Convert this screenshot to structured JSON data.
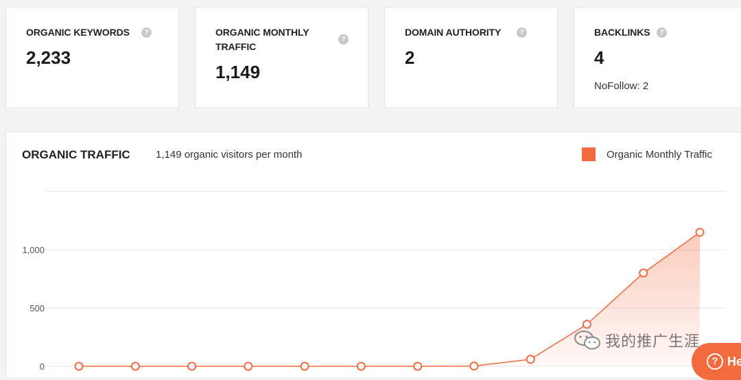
{
  "cards": [
    {
      "title": "ORGANIC KEYWORDS",
      "value": "2,233",
      "help": "?"
    },
    {
      "title": "ORGANIC MONTHLY TRAFFIC",
      "value": "1,149",
      "help": "?"
    },
    {
      "title": "DOMAIN AUTHORITY",
      "value": "2",
      "help": "?"
    },
    {
      "title": "BACKLINKS",
      "value": "4",
      "sub": "NoFollow: 2",
      "help": "?"
    }
  ],
  "traffic_panel": {
    "title": "ORGANIC TRAFFIC",
    "subtitle": "1,149 organic visitors per month",
    "legend_label": "Organic Monthly Traffic",
    "accent_color": "#f26a3d"
  },
  "chart_data": {
    "type": "area",
    "title": "ORGANIC TRAFFIC",
    "series": [
      {
        "name": "Organic Monthly Traffic",
        "values": [
          0,
          0,
          0,
          0,
          0,
          0,
          0,
          2,
          60,
          360,
          800,
          1149
        ]
      }
    ],
    "yticks": [
      "0",
      "500",
      "1,000"
    ],
    "ylim": [
      0,
      1500
    ],
    "grid": true,
    "legend": "top-right"
  },
  "help_button": {
    "label": "He",
    "icon": "help-circle-icon"
  },
  "watermark": {
    "text": "我的推广生涯",
    "icon": "wechat-icon"
  }
}
